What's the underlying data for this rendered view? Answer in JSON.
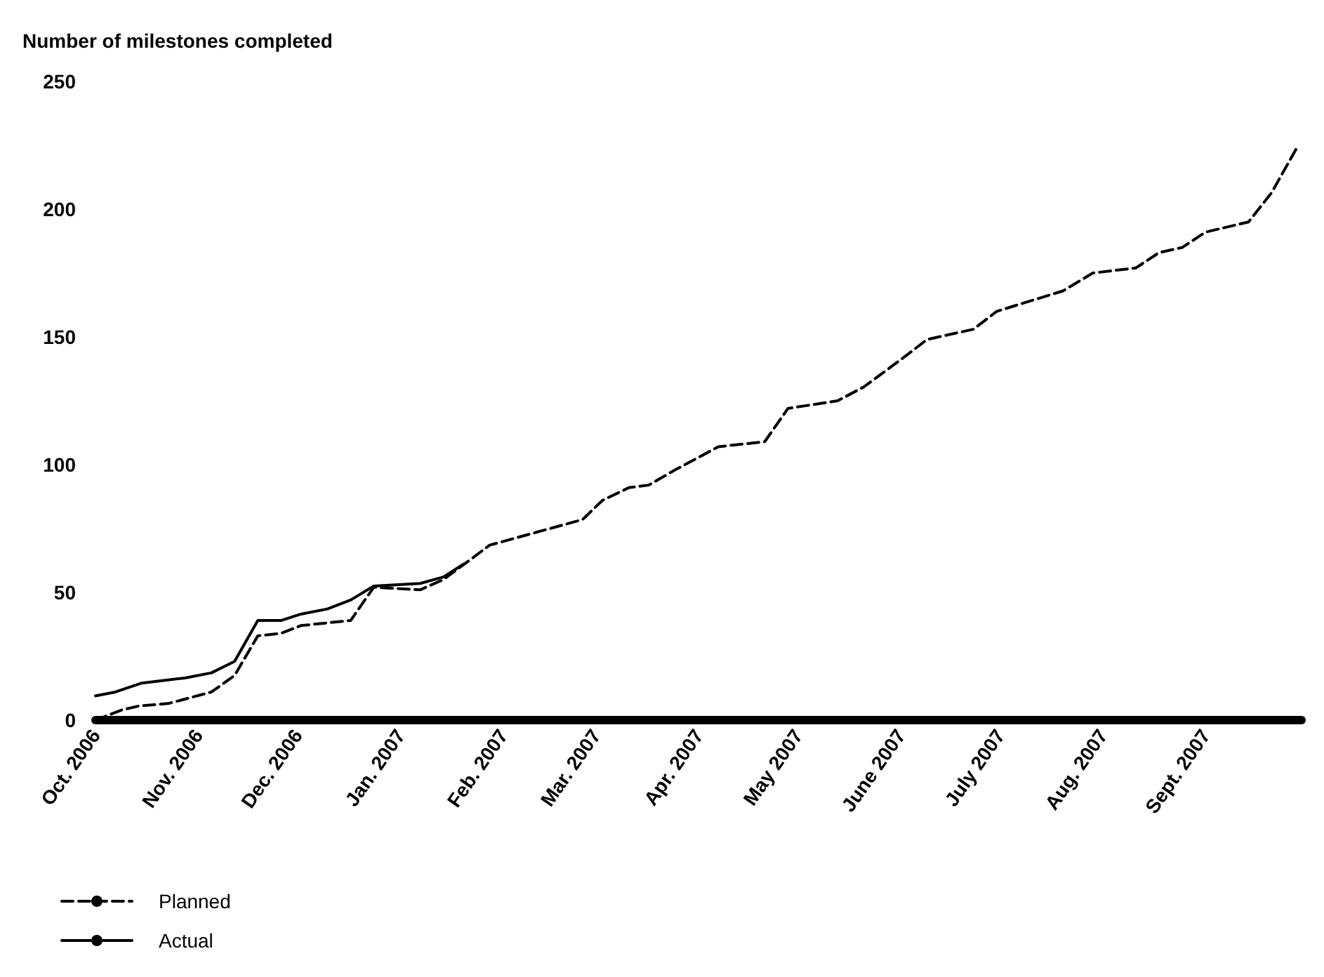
{
  "chart_data": {
    "type": "line",
    "ylabel": "Number of milestones completed",
    "ylim": [
      0,
      250
    ],
    "yticks": [
      0,
      50,
      100,
      150,
      200,
      250
    ],
    "xlim": [
      "2006-10-01",
      "2007-09-30"
    ],
    "xticks": [
      {
        "value": "2006-10-01",
        "label": "Oct. 2006"
      },
      {
        "value": "2006-11-01",
        "label": "Nov. 2006"
      },
      {
        "value": "2006-12-01",
        "label": "Dec. 2006"
      },
      {
        "value": "2007-01-01",
        "label": "Jan. 2007"
      },
      {
        "value": "2007-02-01",
        "label": "Feb. 2007"
      },
      {
        "value": "2007-03-01",
        "label": "Mar. 2007"
      },
      {
        "value": "2007-04-01",
        "label": "Apr. 2007"
      },
      {
        "value": "2007-05-01",
        "label": "May 2007"
      },
      {
        "value": "2007-06-01",
        "label": "June 2007"
      },
      {
        "value": "2007-07-01",
        "label": "July 2007"
      },
      {
        "value": "2007-08-01",
        "label": "Aug. 2007"
      },
      {
        "value": "2007-09-01",
        "label": "Sept. 2007"
      }
    ],
    "grid": false,
    "legend": "bottom left",
    "marker": "none",
    "series": [
      {
        "name": "Planned",
        "color": "#000000",
        "line_style": "dashed",
        "x": [
          "2006-10-01",
          "2006-10-09",
          "2006-10-14",
          "2006-10-23",
          "2006-11-05",
          "2006-11-12",
          "2006-11-19",
          "2006-11-26",
          "2006-12-02",
          "2006-12-17",
          "2006-12-24",
          "2007-01-07",
          "2007-01-14",
          "2007-01-28",
          "2007-02-25",
          "2007-03-03",
          "2007-03-11",
          "2007-03-17",
          "2007-03-25",
          "2007-04-07",
          "2007-04-21",
          "2007-04-28",
          "2007-05-13",
          "2007-05-21",
          "2007-06-03",
          "2007-06-09",
          "2007-06-23",
          "2007-06-30",
          "2007-07-20",
          "2007-07-29",
          "2007-08-11",
          "2007-08-18",
          "2007-08-25",
          "2007-09-01",
          "2007-09-14",
          "2007-09-21",
          "2007-09-29"
        ],
        "values": [
          0,
          4,
          5.5,
          6.5,
          11,
          17.5,
          33,
          34,
          37,
          39,
          52,
          51,
          55,
          68.5,
          78.5,
          86,
          91,
          92,
          98,
          107,
          109,
          122,
          125,
          130.5,
          143,
          149,
          153,
          160,
          168,
          175,
          177,
          183,
          185,
          191,
          195,
          206.5,
          225
        ]
      },
      {
        "name": "Actual",
        "color": "#000000",
        "line_style": "solid",
        "x": [
          "2006-10-01",
          "2006-10-07",
          "2006-10-15",
          "2006-10-28",
          "2006-11-05",
          "2006-11-12",
          "2006-11-19",
          "2006-11-26",
          "2006-12-02",
          "2006-12-10",
          "2006-12-17",
          "2006-12-24",
          "2007-01-07",
          "2007-01-14",
          "2007-01-20"
        ],
        "values": [
          9.5,
          11,
          14.5,
          16.5,
          18.5,
          23,
          39,
          39,
          41.5,
          43.5,
          47,
          52.5,
          53.5,
          56,
          61
        ]
      }
    ]
  }
}
